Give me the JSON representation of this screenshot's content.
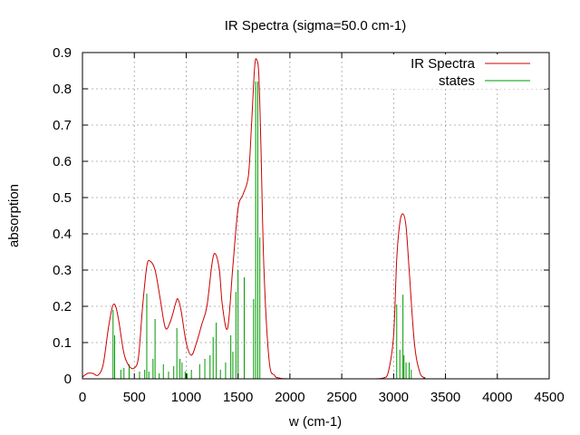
{
  "chart_data": {
    "type": "line",
    "title": "IR Spectra (sigma=50.0 cm-1)",
    "xlabel": "w (cm-1)",
    "ylabel": "absorption",
    "xlim": [
      0,
      4500
    ],
    "ylim": [
      0,
      0.9
    ],
    "x_ticks": [
      "0",
      "500",
      "1000",
      "1500",
      "2000",
      "2500",
      "3000",
      "3500",
      "4000",
      "4500"
    ],
    "y_ticks": [
      "0",
      "0.1",
      "0.2",
      "0.3",
      "0.4",
      "0.5",
      "0.6",
      "0.7",
      "0.8",
      "0.9"
    ],
    "grid": true,
    "legend_position": "top-right",
    "series": [
      {
        "name": "IR Spectra",
        "kind": "line",
        "color": "#cc0000",
        "x": [
          0,
          50,
          100,
          150,
          200,
          250,
          290,
          320,
          350,
          400,
          450,
          500,
          540,
          580,
          620,
          650,
          700,
          750,
          800,
          850,
          900,
          920,
          950,
          1000,
          1050,
          1100,
          1150,
          1200,
          1250,
          1280,
          1320,
          1350,
          1400,
          1450,
          1500,
          1550,
          1600,
          1630,
          1660,
          1680,
          1700,
          1720,
          1750,
          1800,
          1850,
          1900,
          2000,
          2500,
          2800,
          2900,
          2950,
          3000,
          3030,
          3060,
          3090,
          3120,
          3150,
          3200,
          3250,
          3300,
          3400,
          4500
        ],
        "y": [
          0.005,
          0.015,
          0.015,
          0.01,
          0.04,
          0.14,
          0.2,
          0.2,
          0.16,
          0.07,
          0.035,
          0.03,
          0.06,
          0.2,
          0.31,
          0.325,
          0.3,
          0.22,
          0.14,
          0.16,
          0.21,
          0.22,
          0.19,
          0.1,
          0.065,
          0.1,
          0.15,
          0.2,
          0.32,
          0.345,
          0.3,
          0.2,
          0.14,
          0.31,
          0.47,
          0.51,
          0.56,
          0.7,
          0.86,
          0.88,
          0.84,
          0.65,
          0.3,
          0.05,
          0.01,
          0.002,
          0,
          0,
          0,
          0.002,
          0.02,
          0.12,
          0.33,
          0.43,
          0.455,
          0.42,
          0.3,
          0.1,
          0.02,
          0.003,
          0,
          0
        ]
      },
      {
        "name": "states",
        "kind": "impulses",
        "color": "#009900",
        "x": [
          295,
          310,
          370,
          400,
          450,
          550,
          600,
          620,
          640,
          680,
          700,
          740,
          780,
          830,
          880,
          910,
          940,
          960,
          990,
          1010,
          1050,
          1130,
          1180,
          1230,
          1260,
          1290,
          1330,
          1380,
          1430,
          1450,
          1480,
          1500,
          1560,
          1650,
          1670,
          1690,
          1710,
          3030,
          3060,
          3090,
          3100,
          3120,
          3150,
          3170
        ],
        "y": [
          0.19,
          0.12,
          0.025,
          0.03,
          0.04,
          0.02,
          0.025,
          0.235,
          0.02,
          0.055,
          0.165,
          0.015,
          0.04,
          0.02,
          0.035,
          0.14,
          0.055,
          0.045,
          0.02,
          0.015,
          0.025,
          0.04,
          0.055,
          0.065,
          0.115,
          0.155,
          0.025,
          0.045,
          0.12,
          0.075,
          0.24,
          0.3,
          0.28,
          0.22,
          0.82,
          0.82,
          0.39,
          0.205,
          0.08,
          0.232,
          0.065,
          0.045,
          0.045,
          0.025
        ]
      }
    ]
  }
}
